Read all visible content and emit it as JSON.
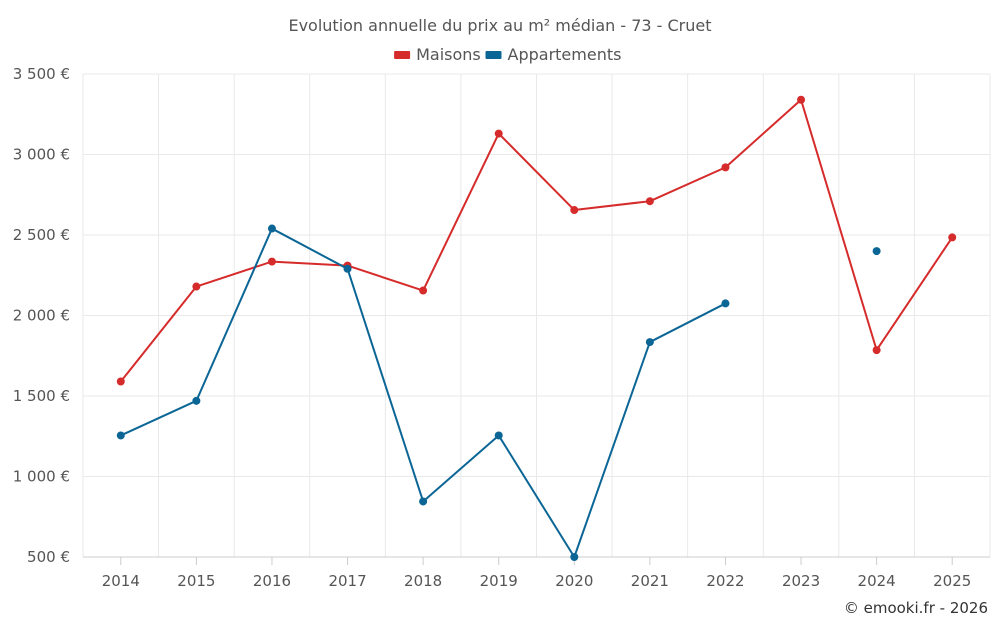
{
  "chart_data": {
    "type": "line",
    "title": "Evolution annuelle du prix au m² médian - 73 - Cruet",
    "categories": [
      "2014",
      "2015",
      "2016",
      "2017",
      "2018",
      "2019",
      "2020",
      "2021",
      "2022",
      "2023",
      "2024",
      "2025"
    ],
    "ylim": [
      500,
      3500
    ],
    "yticks": [
      500,
      1000,
      1500,
      2000,
      2500,
      3000,
      3500
    ],
    "ytick_labels": [
      "500 €",
      "1 000 €",
      "1 500 €",
      "2 000 €",
      "2 500 €",
      "3 000 €",
      "3 500 €"
    ],
    "grid": true,
    "legend_position": "top-center",
    "series": [
      {
        "name": "Maisons",
        "color": "#d62b2b",
        "values": [
          1590,
          2180,
          2335,
          2310,
          2155,
          3130,
          2655,
          2710,
          2920,
          3340,
          1785,
          2485
        ]
      },
      {
        "name": "Appartements",
        "color": "#0b6696",
        "values": [
          1255,
          1470,
          2540,
          2290,
          845,
          1255,
          500,
          1835,
          2075,
          null,
          2400,
          null
        ]
      }
    ]
  },
  "credit": "© emooki.fr - 2026"
}
